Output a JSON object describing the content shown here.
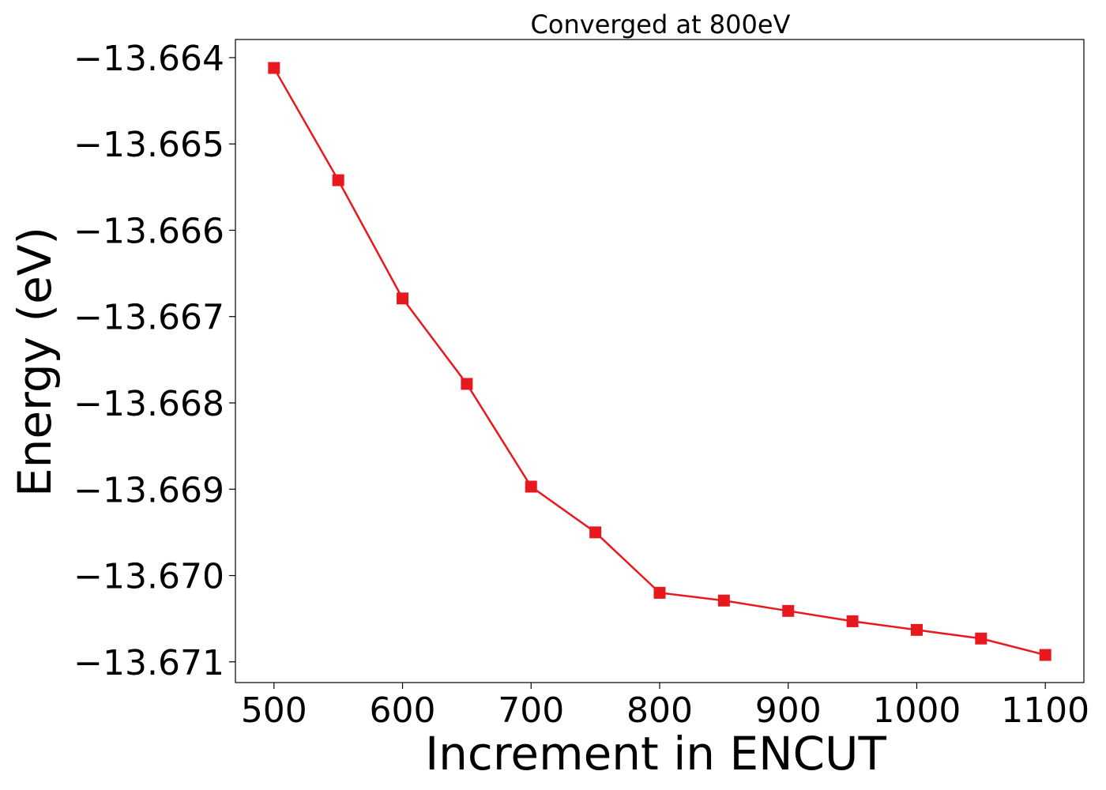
{
  "chart_data": {
    "type": "line",
    "title": "Converged at 800eV",
    "xlabel": "Increment in ENCUT",
    "ylabel": "Energy (eV)",
    "xlim": [
      470,
      1130
    ],
    "ylim": [
      -13.67124,
      -13.66379
    ],
    "x_ticks": [
      500,
      600,
      700,
      800,
      900,
      1000,
      1100
    ],
    "x_tick_labels": [
      "500",
      "600",
      "700",
      "800",
      "900",
      "1000",
      "1100"
    ],
    "y_ticks": [
      -13.664,
      -13.665,
      -13.666,
      -13.667,
      -13.668,
      -13.669,
      -13.67,
      -13.671
    ],
    "y_tick_labels": [
      "−13.664",
      "−13.665",
      "−13.666",
      "−13.667",
      "−13.668",
      "−13.669",
      "−13.670",
      "−13.671"
    ],
    "grid": false,
    "series": [
      {
        "color": "#e8191e",
        "marker": "square",
        "x": [
          500,
          550,
          600,
          650,
          700,
          750,
          800,
          850,
          900,
          950,
          1000,
          1050,
          1100
        ],
        "y": [
          -13.66412,
          -13.66542,
          -13.66679,
          -13.66778,
          -13.66897,
          -13.6695,
          -13.6702,
          -13.67029,
          -13.67041,
          -13.67053,
          -13.67063,
          -13.67073,
          -13.67092
        ]
      }
    ]
  }
}
